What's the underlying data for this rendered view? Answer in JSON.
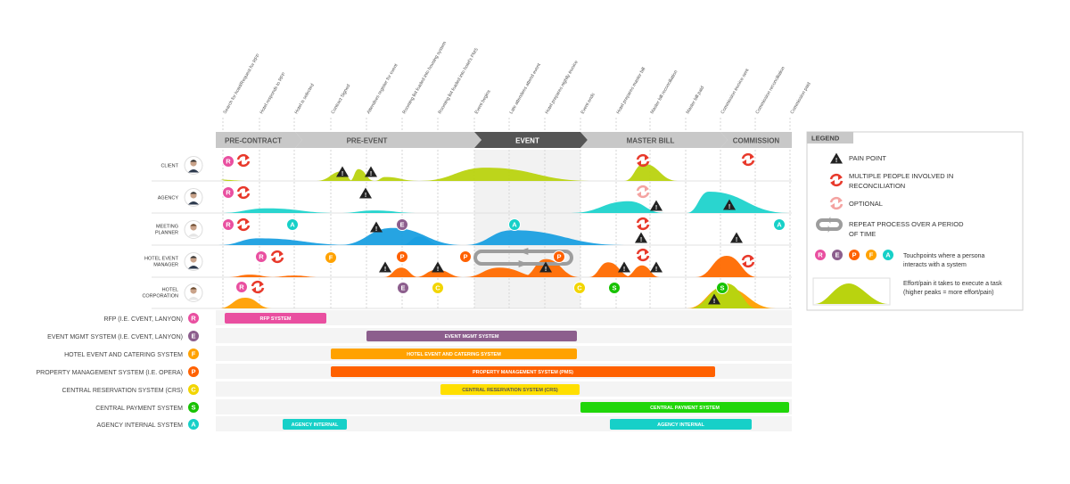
{
  "milestones": [
    "Search for hotel/Request for RFP",
    "Hotel responds to RFP",
    "Hotel is selected",
    "Contract Signed",
    "Attendees register for event",
    "Rooming list loaded into housing system",
    "Rooming list loaded into hotel's PMS",
    "Event begins",
    "Late attendees attend event",
    "Hotel prepares nightly invoice",
    "Event ends",
    "Hotel prepares master bill",
    "Master bill reconciliation",
    "Master bill paid",
    "Commission invoice sent",
    "Commission reconciliation",
    "Commission paid"
  ],
  "phases": [
    {
      "label": "PRE-CONTRACT",
      "dark": false
    },
    {
      "label": "PRE-EVENT",
      "dark": false
    },
    {
      "label": "EVENT",
      "dark": true
    },
    {
      "label": "MASTER BILL",
      "dark": false
    },
    {
      "label": "COMMISSION",
      "dark": false
    }
  ],
  "personas": [
    {
      "label": "CLIENT",
      "color": "#b9d30f"
    },
    {
      "label": "AGENCY",
      "color": "#1fd3cc"
    },
    {
      "label": "MEETING PLANNER",
      "color": "#1a9fe0"
    },
    {
      "label": "HOTEL EVENT MANAGER",
      "color": "#ff6a00"
    },
    {
      "label": "HOTEL CORPORATION",
      "color": "#ff9f00"
    }
  ],
  "systems": [
    {
      "label": "RFP (I.E. CVENT, LANYON)",
      "letter": "R",
      "color": "#e94fa0",
      "bar_color": "#e94fa0",
      "bars": [
        "RFP SYSTEM"
      ],
      "bar_text_color": "#ffffff"
    },
    {
      "label": "EVENT MGMT SYSTEM (I.E. CVENT, LANYON)",
      "letter": "E",
      "color": "#8c5e8d",
      "bar_color": "#8c5e8d",
      "bars": [
        "EVENT MGMT SYSTEM"
      ],
      "bar_text_color": "#ffffff"
    },
    {
      "label": "HOTEL EVENT AND CATERING SYSTEM",
      "letter": "F",
      "color": "#ffa200",
      "bar_color": "#ffa200",
      "bars": [
        "HOTEL EVENT AND CATERING SYSTEM"
      ],
      "bar_text_color": "#ffffff"
    },
    {
      "label": "PROPERTY MANAGEMENT SYSTEM (I.E. OPERA)",
      "letter": "P",
      "color": "#ff6100",
      "bar_color": "#ff6100",
      "bars": [
        "PROPERTY MANAGEMENT SYSTEM (PMS)"
      ],
      "bar_text_color": "#ffffff"
    },
    {
      "label": "CENTRAL RESERVATION SYSTEM (CRS)",
      "letter": "C",
      "color": "#f2d500",
      "bar_color": "#ffdf00",
      "bars": [
        "CENTRAL RESERVATION SYSTEM (CRS)"
      ],
      "bar_text_color": "#555555"
    },
    {
      "label": "CENTRAL PAYMENT SYSTEM",
      "letter": "S",
      "color": "#17c200",
      "bar_color": "#20d60a",
      "bars": [
        "CENTRAL PAYMENT SYSTEM"
      ],
      "bar_text_color": "#ffffff"
    },
    {
      "label": "AGENCY INTERNAL SYSTEM",
      "letter": "A",
      "color": "#16d0c8",
      "bar_color": "#16d0c8",
      "bars": [
        "AGENCY INTERNAL",
        "AGENCY INTERNAL"
      ],
      "bar_text_color": "#ffffff"
    }
  ],
  "legend": {
    "title": "LEGEND",
    "pain_point": "PAIN POINT",
    "multiple_people": "MULTIPLE PEOPLE INVOLVED IN RECONCILIATION",
    "optional": "OPTIONAL",
    "repeat_process": "REPEAT PROCESS OVER A PERIOD OF TIME",
    "touchpoints": "Touchpoints where a persona interacts with a system",
    "touchpoint_letters": [
      "R",
      "E",
      "P",
      "F",
      "A"
    ],
    "effort": "Effort/pain it takes to execute a task (higher peaks = more effort/pain)"
  },
  "colors": {
    "pain": "#222222",
    "reconcile": "#e8392b",
    "optional": "#f4a3a1",
    "repeat": "#9d9d9d",
    "phase_light": "#c8c8c8",
    "phase_dark": "#555555",
    "grid": "#d6d6d6"
  },
  "icons": [
    "pain-point-icon",
    "reconciliation-icon",
    "optional-icon",
    "repeat-process-icon"
  ]
}
